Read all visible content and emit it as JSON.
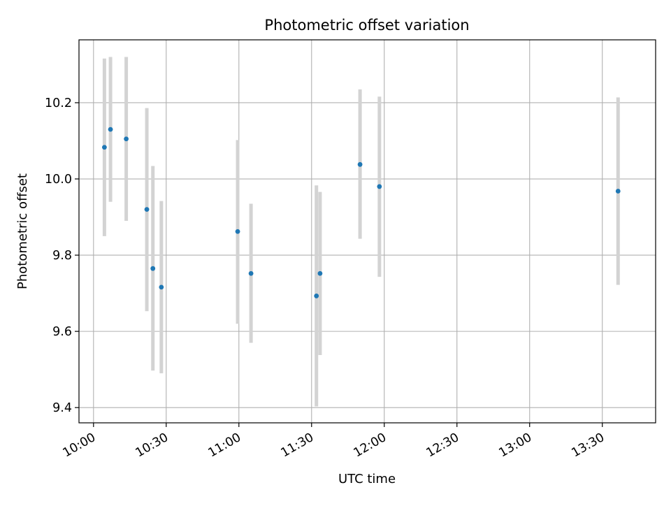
{
  "chart_data": {
    "type": "scatter",
    "title": "Photometric offset variation",
    "xlabel": "UTC time",
    "ylabel": "Photometric offset",
    "x_axis": {
      "scale": "time",
      "range": [
        "09:54",
        "13:52"
      ],
      "ticks": [
        "10:00",
        "10:30",
        "11:00",
        "11:30",
        "12:00",
        "12:30",
        "13:00",
        "13:30"
      ]
    },
    "y_axis": {
      "range": [
        9.36,
        10.365
      ],
      "ticks": [
        "9.4",
        "9.6",
        "9.8",
        "10.0",
        "10.2"
      ]
    },
    "grid": true,
    "legend": "none",
    "series": [
      {
        "marker_color": "#1f77b4",
        "errorbar_color": "#d3d3d3",
        "points": [
          {
            "x": "10:04.5",
            "y": 10.083,
            "ylow": 9.85,
            "yhigh": 10.316
          },
          {
            "x": "10:07.0",
            "y": 10.13,
            "ylow": 9.94,
            "yhigh": 10.32
          },
          {
            "x": "10:13.5",
            "y": 10.105,
            "ylow": 9.89,
            "yhigh": 10.32
          },
          {
            "x": "10:22.0",
            "y": 9.92,
            "ylow": 9.653,
            "yhigh": 10.186
          },
          {
            "x": "10:24.5",
            "y": 9.765,
            "ylow": 9.497,
            "yhigh": 10.034
          },
          {
            "x": "10:28.0",
            "y": 9.716,
            "ylow": 9.49,
            "yhigh": 9.942
          },
          {
            "x": "10:59.5",
            "y": 9.862,
            "ylow": 9.62,
            "yhigh": 10.102
          },
          {
            "x": "11:05.0",
            "y": 9.752,
            "ylow": 9.57,
            "yhigh": 9.935
          },
          {
            "x": "11:32.0",
            "y": 9.693,
            "ylow": 9.403,
            "yhigh": 9.983
          },
          {
            "x": "11:33.5",
            "y": 9.752,
            "ylow": 9.538,
            "yhigh": 9.966
          },
          {
            "x": "11:50.0",
            "y": 10.038,
            "ylow": 9.843,
            "yhigh": 10.235
          },
          {
            "x": "11:58.0",
            "y": 9.98,
            "ylow": 9.743,
            "yhigh": 10.216
          },
          {
            "x": "13:36.5",
            "y": 9.968,
            "ylow": 9.722,
            "yhigh": 10.214
          }
        ]
      }
    ]
  }
}
